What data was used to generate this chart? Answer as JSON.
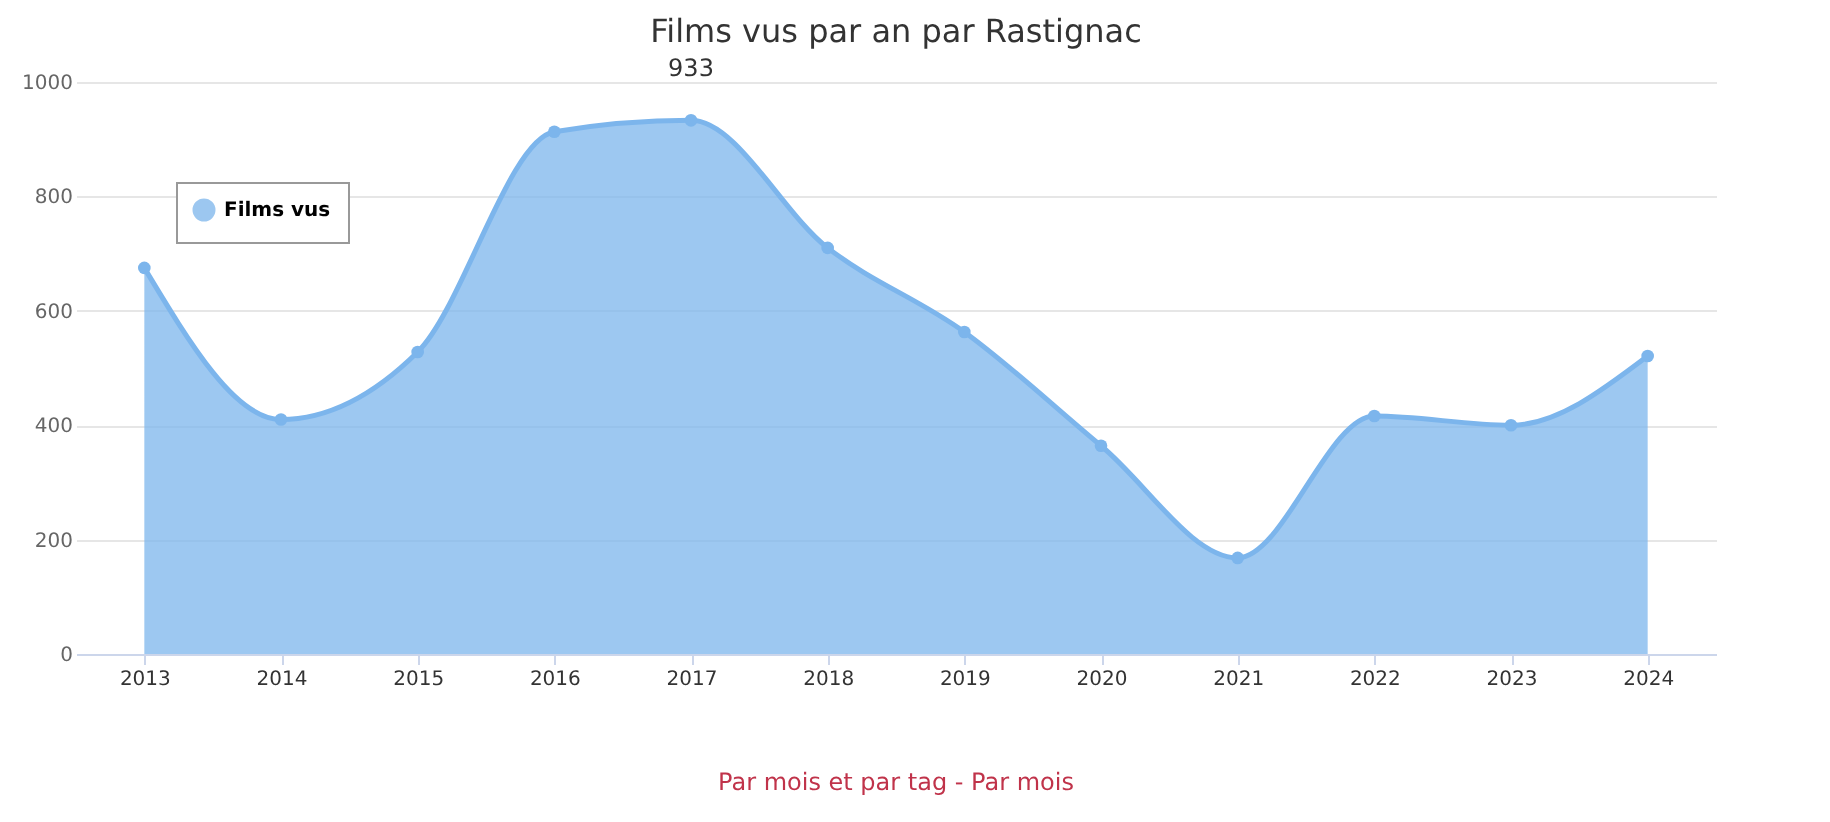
{
  "chart_data": {
    "type": "area",
    "title": "Films vus par an par Rastignac",
    "categories": [
      "2013",
      "2014",
      "2015",
      "2016",
      "2017",
      "2018",
      "2019",
      "2020",
      "2021",
      "2022",
      "2023",
      "2024"
    ],
    "series": [
      {
        "name": "Films vus",
        "color": "#7cb5ec",
        "values": [
          675,
          410,
          528,
          913,
          933,
          710,
          563,
          364,
          168,
          416,
          400,
          521
        ]
      }
    ],
    "ylim": [
      0,
      1000
    ],
    "yticks": [
      0,
      200,
      400,
      600,
      800,
      1000
    ],
    "grid": "y",
    "legend": "top left",
    "marker": "circle",
    "annotations": [
      {
        "text": "933",
        "x": "2017",
        "y": 933
      },
      "Par mois et par tag - Par mois"
    ]
  }
}
